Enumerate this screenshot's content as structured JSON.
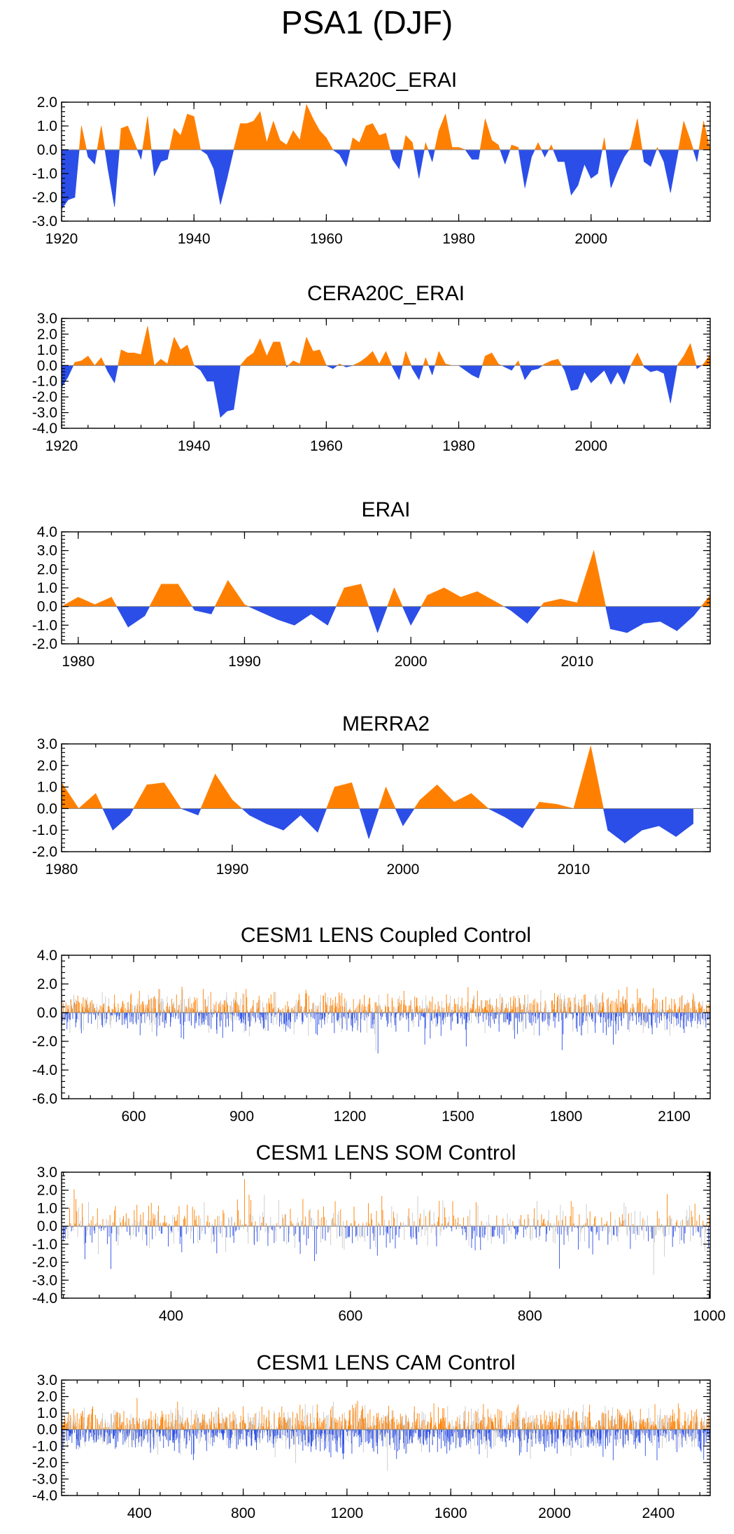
{
  "figure": {
    "title": "PSA1 (DJF)",
    "colors": {
      "positive": "#ff8000",
      "negative": "#2b4ee8",
      "zero_line": "#888888",
      "frame": "#000000",
      "thin_line": "#cccccc"
    }
  },
  "chart_data": [
    {
      "type": "area",
      "title": "ERA20C_ERAI",
      "xlabel": "",
      "ylabel": "",
      "xlim": [
        1920,
        2018
      ],
      "ylim": [
        -3.0,
        2.0
      ],
      "xticks": [
        1920,
        1940,
        1960,
        1980,
        2000
      ],
      "xtick_labels": [
        "1920",
        "1940",
        "1960",
        "1980",
        "2000"
      ],
      "yticks": [
        2,
        1,
        0,
        -1,
        -2,
        -3
      ],
      "ytick_labels": [
        "2.0",
        "1.0",
        "0.0",
        "-1.0",
        "-2.0",
        "-3.0"
      ],
      "x": [
        1920,
        1921,
        1922,
        1923,
        1924,
        1925,
        1926,
        1927,
        1928,
        1929,
        1930,
        1931,
        1932,
        1933,
        1934,
        1935,
        1936,
        1937,
        1938,
        1939,
        1940,
        1941,
        1942,
        1943,
        1944,
        1945,
        1946,
        1947,
        1948,
        1949,
        1950,
        1951,
        1952,
        1953,
        1954,
        1955,
        1956,
        1957,
        1958,
        1959,
        1960,
        1961,
        1962,
        1963,
        1964,
        1965,
        1966,
        1967,
        1968,
        1969,
        1970,
        1971,
        1972,
        1973,
        1974,
        1975,
        1976,
        1977,
        1978,
        1979,
        1980,
        1981,
        1982,
        1983,
        1984,
        1985,
        1986,
        1987,
        1988,
        1989,
        1990,
        1991,
        1992,
        1993,
        1994,
        1995,
        1996,
        1997,
        1998,
        1999,
        2000,
        2001,
        2002,
        2003,
        2004,
        2005,
        2006,
        2007,
        2008,
        2009,
        2010,
        2011,
        2012,
        2013,
        2014,
        2015,
        2016,
        2017,
        2018
      ],
      "values": [
        -2.5,
        -2.1,
        -2.0,
        1.0,
        -0.3,
        -0.6,
        1.0,
        -0.8,
        -2.4,
        0.9,
        1.0,
        0.3,
        -0.4,
        1.4,
        -1.1,
        -0.5,
        -0.4,
        0.9,
        0.6,
        1.5,
        1.4,
        0.0,
        -0.2,
        -0.8,
        -2.3,
        -1.2,
        0.0,
        1.1,
        1.1,
        1.2,
        1.6,
        0.3,
        1.2,
        0.4,
        0.2,
        0.8,
        0.4,
        1.9,
        1.3,
        0.8,
        0.5,
        0.0,
        -0.2,
        -0.7,
        0.5,
        0.3,
        1.0,
        1.1,
        0.6,
        0.7,
        -0.4,
        -0.8,
        0.6,
        0.3,
        -1.2,
        0.3,
        -0.5,
        0.8,
        1.5,
        0.1,
        0.1,
        0.0,
        -0.4,
        -0.4,
        1.3,
        0.4,
        0.2,
        -0.6,
        0.2,
        0.1,
        -1.6,
        -0.3,
        0.3,
        -0.3,
        0.2,
        -0.5,
        -0.5,
        -1.9,
        -1.5,
        -0.6,
        -1.2,
        -1.0,
        0.5,
        -1.6,
        -0.9,
        -0.3,
        0.1,
        1.3,
        -0.5,
        -0.7,
        0.1,
        -0.5,
        -1.8,
        -0.3,
        1.2,
        0.4,
        -0.5,
        1.2,
        0.0
      ]
    },
    {
      "type": "area",
      "title": "CERA20C_ERAI",
      "xlabel": "",
      "ylabel": "",
      "xlim": [
        1920,
        2018
      ],
      "ylim": [
        -4.0,
        3.0
      ],
      "xticks": [
        1920,
        1940,
        1960,
        1980,
        2000
      ],
      "xtick_labels": [
        "1920",
        "1940",
        "1960",
        "1980",
        "2000"
      ],
      "yticks": [
        3,
        2,
        1,
        0,
        -1,
        -2,
        -3,
        -4
      ],
      "ytick_labels": [
        "3.0",
        "2.0",
        "1.0",
        "0.0",
        "-1.0",
        "-2.0",
        "-3.0",
        "-4.0"
      ],
      "x": [
        1920,
        1921,
        1922,
        1923,
        1924,
        1925,
        1926,
        1927,
        1928,
        1929,
        1930,
        1931,
        1932,
        1933,
        1934,
        1935,
        1936,
        1937,
        1938,
        1939,
        1940,
        1941,
        1942,
        1943,
        1944,
        1945,
        1946,
        1947,
        1948,
        1949,
        1950,
        1951,
        1952,
        1953,
        1954,
        1955,
        1956,
        1957,
        1958,
        1959,
        1960,
        1961,
        1962,
        1963,
        1964,
        1965,
        1966,
        1967,
        1968,
        1969,
        1970,
        1971,
        1972,
        1973,
        1974,
        1975,
        1976,
        1977,
        1978,
        1979,
        1980,
        1981,
        1982,
        1983,
        1984,
        1985,
        1986,
        1987,
        1988,
        1989,
        1990,
        1991,
        1992,
        1993,
        1994,
        1995,
        1996,
        1997,
        1998,
        1999,
        2000,
        2001,
        2002,
        2003,
        2004,
        2005,
        2006,
        2007,
        2008,
        2009,
        2010,
        2011,
        2012,
        2013,
        2014,
        2015,
        2016,
        2017,
        2018
      ],
      "values": [
        -1.4,
        -0.7,
        0.2,
        0.3,
        0.6,
        0.0,
        0.5,
        -0.4,
        -1.1,
        1.0,
        0.8,
        0.8,
        0.7,
        2.5,
        0.0,
        0.4,
        0.1,
        1.8,
        1.0,
        1.3,
        0.0,
        -0.3,
        -1.0,
        -1.0,
        -3.3,
        -2.9,
        -2.8,
        0.0,
        0.5,
        0.8,
        1.7,
        0.6,
        1.5,
        1.5,
        -0.1,
        0.3,
        0.1,
        1.8,
        0.9,
        1.0,
        0.0,
        -0.2,
        0.1,
        -0.1,
        0.0,
        0.2,
        0.5,
        0.9,
        0.1,
        0.9,
        -0.1,
        -0.9,
        0.9,
        -0.2,
        -0.9,
        0.5,
        -0.6,
        0.9,
        0.1,
        0.0,
        0.0,
        -0.3,
        -0.6,
        -0.8,
        0.6,
        0.8,
        0.1,
        -0.1,
        -0.3,
        0.3,
        -0.9,
        -0.3,
        -0.2,
        0.1,
        0.3,
        0.4,
        -0.3,
        -1.6,
        -1.5,
        -0.4,
        -1.1,
        -0.7,
        -0.3,
        -1.2,
        -0.4,
        -1.2,
        0.0,
        0.8,
        -0.1,
        -0.4,
        -0.3,
        -0.5,
        -2.4,
        0.0,
        0.6,
        1.4,
        -0.2,
        0.1,
        0.7
      ]
    },
    {
      "type": "area",
      "title": "ERAI",
      "xlabel": "",
      "ylabel": "",
      "xlim": [
        1979,
        2018
      ],
      "ylim": [
        -2.0,
        4.0
      ],
      "xticks": [
        1980,
        1990,
        2000,
        2010
      ],
      "xtick_labels": [
        "1980",
        "1990",
        "2000",
        "2010"
      ],
      "yticks": [
        4,
        3,
        2,
        1,
        0,
        -1,
        -2
      ],
      "ytick_labels": [
        "4.0",
        "3.0",
        "2.0",
        "1.0",
        "0.0",
        "-1.0",
        "-2.0"
      ],
      "x": [
        1979,
        1980,
        1981,
        1982,
        1983,
        1984,
        1985,
        1986,
        1987,
        1988,
        1989,
        1990,
        1991,
        1992,
        1993,
        1994,
        1995,
        1996,
        1997,
        1998,
        1999,
        2000,
        2001,
        2002,
        2003,
        2004,
        2005,
        2006,
        2007,
        2008,
        2009,
        2010,
        2011,
        2012,
        2013,
        2014,
        2015,
        2016,
        2017,
        2018
      ],
      "values": [
        0.0,
        0.5,
        0.1,
        0.5,
        -1.1,
        -0.5,
        1.2,
        1.2,
        -0.2,
        -0.4,
        1.4,
        0.1,
        -0.3,
        -0.7,
        -1.0,
        -0.4,
        -1.0,
        1.0,
        1.2,
        -1.4,
        1.0,
        -1.0,
        0.6,
        1.0,
        0.5,
        0.8,
        0.3,
        -0.2,
        -0.9,
        0.2,
        0.4,
        0.2,
        3.0,
        -1.2,
        -1.4,
        -0.9,
        -0.8,
        -1.3,
        -0.5,
        0.6
      ]
    },
    {
      "type": "area",
      "title": "MERRA2",
      "xlabel": "",
      "ylabel": "",
      "xlim": [
        1980,
        2018
      ],
      "ylim": [
        -2.0,
        3.0
      ],
      "xticks": [
        1980,
        1990,
        2000,
        2010
      ],
      "xtick_labels": [
        "1980",
        "1990",
        "2000",
        "2010"
      ],
      "yticks": [
        3,
        2,
        1,
        0,
        -1,
        -2
      ],
      "ytick_labels": [
        "3.0",
        "2.0",
        "1.0",
        "0.0",
        "-1.0",
        "-2.0"
      ],
      "x": [
        1980,
        1981,
        1982,
        1983,
        1984,
        1985,
        1986,
        1987,
        1988,
        1989,
        1990,
        1991,
        1992,
        1993,
        1994,
        1995,
        1996,
        1997,
        1998,
        1999,
        2000,
        2001,
        2002,
        2003,
        2004,
        2005,
        2006,
        2007,
        2008,
        2009,
        2010,
        2011,
        2012,
        2013,
        2014,
        2015,
        2016,
        2017
      ],
      "values": [
        1.2,
        0.0,
        0.7,
        -1.0,
        -0.3,
        1.1,
        1.2,
        0.0,
        -0.3,
        1.6,
        0.4,
        -0.3,
        -0.7,
        -1.0,
        -0.3,
        -1.1,
        1.0,
        1.2,
        -1.4,
        1.0,
        -0.8,
        0.4,
        1.1,
        0.3,
        0.7,
        0.0,
        -0.4,
        -0.9,
        0.3,
        0.2,
        0.0,
        2.9,
        -1.0,
        -1.6,
        -1.0,
        -0.8,
        -1.3,
        -0.7
      ]
    },
    {
      "type": "area",
      "title": "CESM1 LENS Coupled Control",
      "xlabel": "",
      "ylabel": "",
      "xlim": [
        400,
        2200
      ],
      "ylim": [
        -6.0,
        4.0
      ],
      "xticks": [
        600,
        900,
        1200,
        1500,
        1800,
        2100
      ],
      "xtick_labels": [
        "600",
        "900",
        "1200",
        "1500",
        "1800",
        "2100"
      ],
      "yticks": [
        4,
        2,
        0,
        -2,
        -4,
        -6
      ],
      "ytick_labels": [
        "4.0",
        "2.0",
        "0.0",
        "-2.0",
        "-4.0",
        "-6.0"
      ],
      "series_note": "dense annual series",
      "x_start": 400,
      "x_end": 2200,
      "n_points": 1800,
      "amplitude": 1.0,
      "seed": 11
    },
    {
      "type": "area",
      "title": "CESM1 LENS SOM Control",
      "xlabel": "",
      "ylabel": "",
      "xlim": [
        278,
        1001
      ],
      "ylim": [
        -4.0,
        3.0
      ],
      "xticks": [
        400,
        600,
        800,
        1000
      ],
      "xtick_labels": [
        "400",
        "600",
        "800",
        "1000"
      ],
      "yticks": [
        3,
        2,
        1,
        0,
        -1,
        -2,
        -3,
        -4
      ],
      "ytick_labels": [
        "3.0",
        "2.0",
        "1.0",
        "0.0",
        "-1.0",
        "-2.0",
        "-3.0",
        "-4.0"
      ],
      "series_note": "dense annual series",
      "x_start": 278,
      "x_end": 1001,
      "n_points": 723,
      "amplitude": 1.0,
      "seed": 23
    },
    {
      "type": "area",
      "title": "CESM1 LENS CAM Control",
      "xlabel": "",
      "ylabel": "",
      "xlim": [
        100,
        2600
      ],
      "ylim": [
        -4.0,
        3.0
      ],
      "xticks": [
        400,
        800,
        1200,
        1600,
        2000,
        2400
      ],
      "xtick_labels": [
        "400",
        "800",
        "1200",
        "1600",
        "2000",
        "2400"
      ],
      "yticks": [
        3,
        2,
        1,
        0,
        -1,
        -2,
        -3,
        -4
      ],
      "ytick_labels": [
        "3.0",
        "2.0",
        "1.0",
        "0.0",
        "-1.0",
        "-2.0",
        "-3.0",
        "-4.0"
      ],
      "series_note": "dense annual series",
      "x_start": 100,
      "x_end": 2600,
      "n_points": 2500,
      "amplitude": 0.95,
      "seed": 37
    }
  ]
}
